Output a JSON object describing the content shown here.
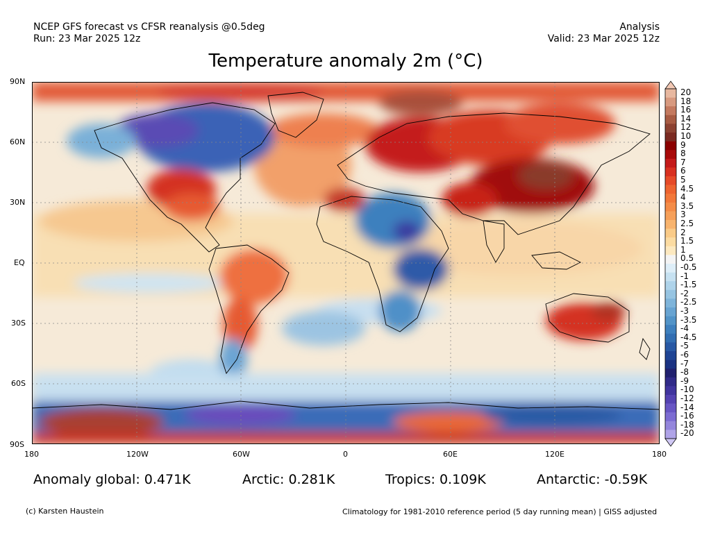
{
  "header": {
    "left_line1": "NCEP GFS forecast vs CFSR reanalysis @0.5deg",
    "left_line2": "Run: 23 Mar 2025 12z",
    "right_line1": "Analysis",
    "right_line2": "Valid: 23 Mar 2025 12z"
  },
  "title": "Temperature anomaly 2m (°C)",
  "axes": {
    "lat_labels": [
      "90N",
      "60N",
      "30N",
      "EQ",
      "30S",
      "60S",
      "90S"
    ],
    "lon_labels": [
      "180",
      "120W",
      "60W",
      "0",
      "60E",
      "120E",
      "180"
    ]
  },
  "colorbar": {
    "labels": [
      "20",
      "18",
      "16",
      "14",
      "12",
      "10",
      "9",
      "8",
      "7",
      "6",
      "5",
      "4.5",
      "4",
      "3.5",
      "3",
      "2.5",
      "2",
      "1.5",
      "1",
      "0.5",
      "-0.5",
      "-1",
      "-1.5",
      "-2",
      "-2.5",
      "-3",
      "-3.5",
      "-4",
      "-4.5",
      "-5",
      "-6",
      "-7",
      "-8",
      "-9",
      "-10",
      "-12",
      "-14",
      "-16",
      "-18",
      "-20"
    ],
    "colors": [
      "#e8b8a0",
      "#d89a80",
      "#c47a60",
      "#a85c44",
      "#8c4232",
      "#7a2a22",
      "#8a0000",
      "#a80a0a",
      "#c41a1a",
      "#d83020",
      "#e64a28",
      "#ee6430",
      "#f2783a",
      "#f48c48",
      "#f6a05a",
      "#f8b46e",
      "#facb88",
      "#fcdca2",
      "#fde9c0",
      "#f4f4f4",
      "#deeef8",
      "#c6e1f1",
      "#aed3ea",
      "#96c4e2",
      "#7eb4da",
      "#68a4d2",
      "#5294c8",
      "#3e80be",
      "#326eb2",
      "#2858a4",
      "#1e4494",
      "#1a3282",
      "#20206e",
      "#302a88",
      "#40349e",
      "#5442b2",
      "#6856c4",
      "#7c6cd2",
      "#9486dc",
      "#b0a4e8"
    ],
    "top_arrow_color": "#f2c8b4",
    "bottom_arrow_color": "#d0c8f4"
  },
  "map": {
    "ocean_color": "#f4e6d0",
    "grid": true
  },
  "stats": {
    "global": "Anomaly global: 0.471K",
    "arctic": "Arctic: 0.281K",
    "tropics": "Tropics: 0.109K",
    "antarctic": "Antarctic: -0.59K"
  },
  "footer": {
    "credit": "(c) Karsten Haustein",
    "note": "Climatology for 1981-2010 reference period (5 day running mean) | GISS adjusted"
  }
}
